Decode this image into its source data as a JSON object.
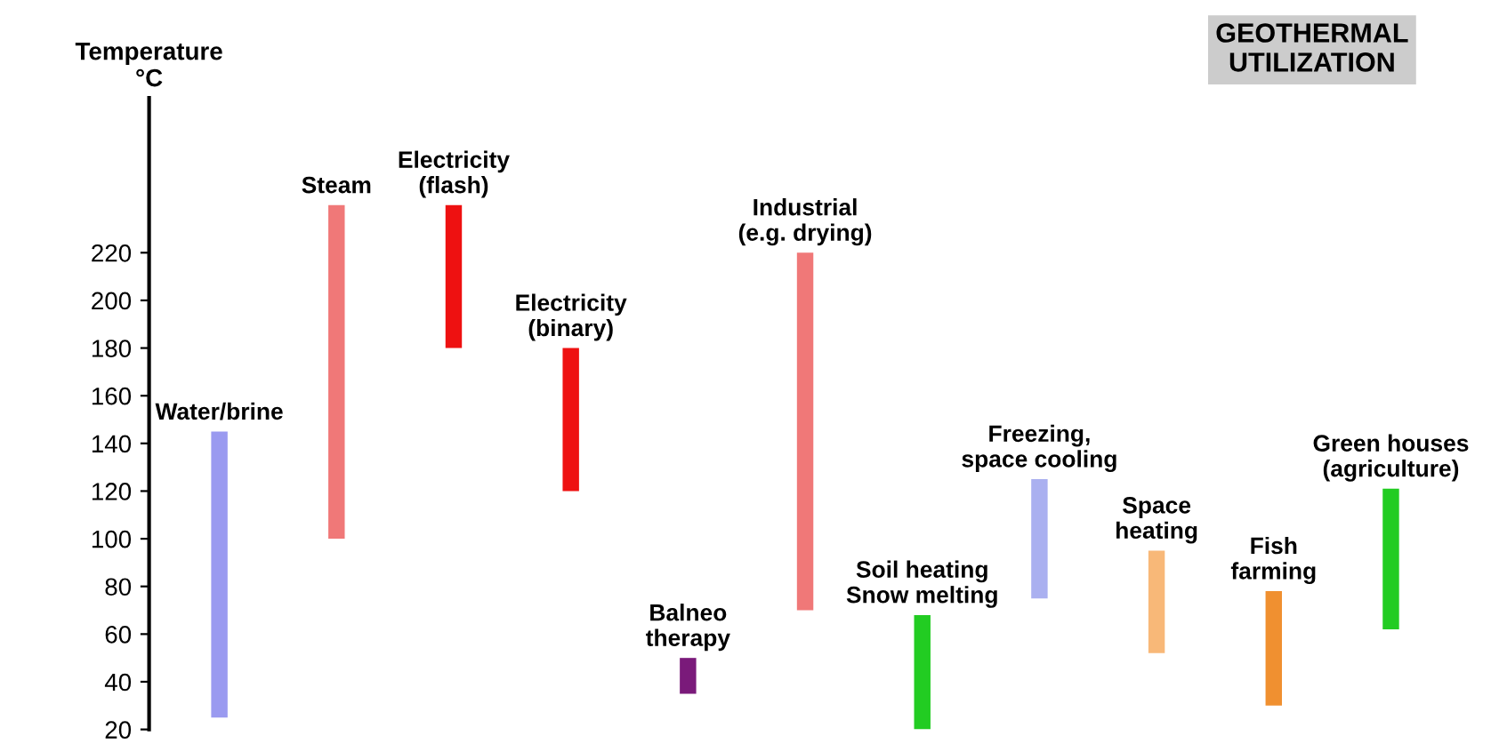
{
  "chart_data": {
    "type": "bar",
    "title": "GEOTHERMAL\nUTILIZATION",
    "ylabel": "Temperature\n°C",
    "categories": [
      "Water/brine",
      "Steam",
      "Electricity\n(flash)",
      "Electricity\n(binary)",
      "Balneo\ntherapy",
      "Industrial\n(e.g. drying)",
      "Soil heating\nSnow melting",
      "Freezing,\nspace cooling",
      "Space\nheating",
      "Fish\nfarming",
      "Green houses\n(agriculture)"
    ],
    "base": [
      25,
      100,
      180,
      120,
      35,
      70,
      20,
      75,
      52,
      30,
      62
    ],
    "values": [
      120,
      140,
      60,
      60,
      15,
      150,
      48,
      50,
      43,
      48,
      59
    ],
    "colors": [
      "#9a9af0",
      "#f07878",
      "#ee1111",
      "#ee1111",
      "#7a1a7a",
      "#f07878",
      "#22cc22",
      "#aab0f0",
      "#f8b878",
      "#f09030",
      "#22cc22"
    ],
    "ylim": [
      20,
      285
    ],
    "yticks": [
      20,
      40,
      60,
      80,
      100,
      120,
      140,
      160,
      180,
      200,
      220
    ],
    "tick_labels": "y",
    "grid": false
  }
}
